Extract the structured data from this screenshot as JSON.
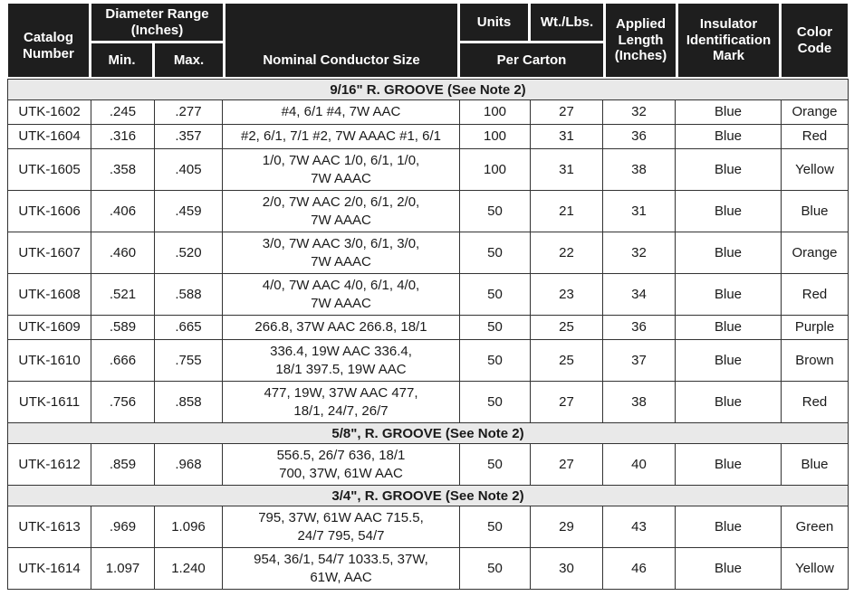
{
  "table": {
    "header": {
      "catalog": "Catalog\nNumber",
      "diameter_range": "Diameter Range\n(Inches)",
      "min": "Min.",
      "max": "Max.",
      "conductor": "Nominal Conductor Size",
      "units": "Units",
      "wt": "Wt./Lbs.",
      "per_carton": "Per Carton",
      "applied_length": "Applied\nLength\n(Inches)",
      "insulator": "Insulator\nIdentification\nMark",
      "color_code": "Color\nCode"
    },
    "sections": [
      {
        "title": "9/16\" R. GROOVE (See Note 2)",
        "rows": [
          {
            "catalog": "UTK-1602",
            "min": ".245",
            "max": ".277",
            "conductor": "#4, 6/1 #4, 7W AAC",
            "units": "100",
            "wt": "27",
            "applied": "32",
            "insulator": "Blue",
            "color": "Orange"
          },
          {
            "catalog": "UTK-1604",
            "min": ".316",
            "max": ".357",
            "conductor": "#2, 6/1, 7/1 #2, 7W AAAC #1, 6/1",
            "units": "100",
            "wt": "31",
            "applied": "36",
            "insulator": "Blue",
            "color": "Red"
          },
          {
            "catalog": "UTK-1605",
            "min": ".358",
            "max": ".405",
            "conductor": "1/0, 7W AAC 1/0, 6/1, 1/0,\n7W AAAC",
            "units": "100",
            "wt": "31",
            "applied": "38",
            "insulator": "Blue",
            "color": "Yellow"
          },
          {
            "catalog": "UTK-1606",
            "min": ".406",
            "max": ".459",
            "conductor": "2/0, 7W AAC 2/0, 6/1, 2/0,\n7W AAAC",
            "units": "50",
            "wt": "21",
            "applied": "31",
            "insulator": "Blue",
            "color": "Blue"
          },
          {
            "catalog": "UTK-1607",
            "min": ".460",
            "max": ".520",
            "conductor": "3/0, 7W AAC 3/0, 6/1, 3/0,\n7W AAAC",
            "units": "50",
            "wt": "22",
            "applied": "32",
            "insulator": "Blue",
            "color": "Orange"
          },
          {
            "catalog": "UTK-1608",
            "min": ".521",
            "max": ".588",
            "conductor": "4/0, 7W AAC 4/0, 6/1, 4/0,\n7W AAAC",
            "units": "50",
            "wt": "23",
            "applied": "34",
            "insulator": "Blue",
            "color": "Red"
          },
          {
            "catalog": "UTK-1609",
            "min": ".589",
            "max": ".665",
            "conductor": "266.8, 37W AAC 266.8, 18/1",
            "units": "50",
            "wt": "25",
            "applied": "36",
            "insulator": "Blue",
            "color": "Purple"
          },
          {
            "catalog": "UTK-1610",
            "min": ".666",
            "max": ".755",
            "conductor": "336.4, 19W AAC 336.4,\n18/1 397.5, 19W AAC",
            "units": "50",
            "wt": "25",
            "applied": "37",
            "insulator": "Blue",
            "color": "Brown"
          },
          {
            "catalog": "UTK-1611",
            "min": ".756",
            "max": ".858",
            "conductor": "477, 19W, 37W AAC 477,\n18/1, 24/7, 26/7",
            "units": "50",
            "wt": "27",
            "applied": "38",
            "insulator": "Blue",
            "color": "Red"
          }
        ]
      },
      {
        "title": "5/8\", R. GROOVE (See Note 2)",
        "rows": [
          {
            "catalog": "UTK-1612",
            "min": ".859",
            "max": ".968",
            "conductor": "556.5, 26/7 636, 18/1\n700, 37W, 61W AAC",
            "units": "50",
            "wt": "27",
            "applied": "40",
            "insulator": "Blue",
            "color": "Blue"
          }
        ]
      },
      {
        "title": "3/4\", R. GROOVE (See Note 2)",
        "rows": [
          {
            "catalog": "UTK-1613",
            "min": ".969",
            "max": "1.096",
            "conductor": "795, 37W, 61W AAC 715.5,\n24/7 795, 54/7",
            "units": "50",
            "wt": "29",
            "applied": "43",
            "insulator": "Blue",
            "color": "Green"
          },
          {
            "catalog": "UTK-1614",
            "min": "1.097",
            "max": "1.240",
            "conductor": "954, 36/1, 54/7 1033.5, 37W,\n61W, AAC",
            "units": "50",
            "wt": "30",
            "applied": "46",
            "insulator": "Blue",
            "color": "Yellow"
          }
        ]
      }
    ],
    "colors": {
      "header_bg": "#1e1e1e",
      "band_bg": "#e9e9e9",
      "grid_line": "#333333"
    }
  }
}
